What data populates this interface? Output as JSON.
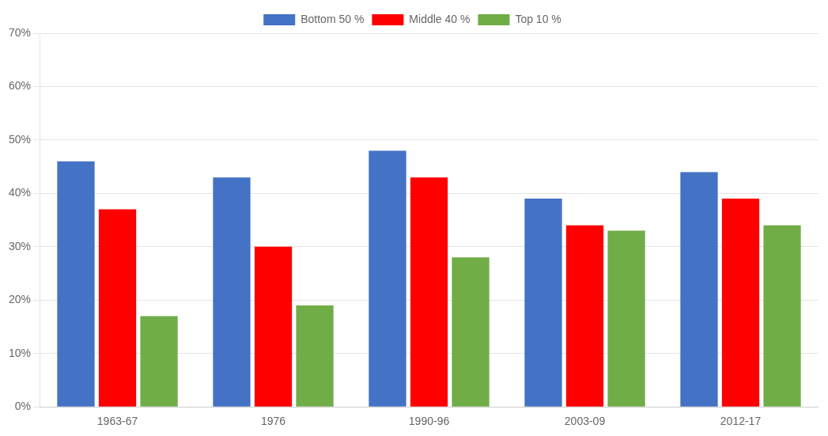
{
  "chart_data": {
    "type": "bar",
    "categories": [
      "1963-67",
      "1976",
      "1990-96",
      "2003-09",
      "2012-17"
    ],
    "series": [
      {
        "name": "Bottom 50 %",
        "color": "#4472C4",
        "values": [
          46,
          43,
          48,
          39,
          44
        ]
      },
      {
        "name": "Middle 40 %",
        "color": "#FF0000",
        "values": [
          37,
          30,
          43,
          34,
          39
        ]
      },
      {
        "name": "Top 10 %",
        "color": "#70AD47",
        "values": [
          17,
          19,
          28,
          33,
          34
        ]
      }
    ],
    "ylim": [
      0,
      70
    ],
    "yticks": [
      {
        "value": 0,
        "label": "0%"
      },
      {
        "value": 10,
        "label": "10%"
      },
      {
        "value": 20,
        "label": "20%"
      },
      {
        "value": 30,
        "label": "30%"
      },
      {
        "value": 40,
        "label": "40%"
      },
      {
        "value": 50,
        "label": "50%"
      },
      {
        "value": 60,
        "label": "60%"
      },
      {
        "value": 70,
        "label": "70%"
      }
    ],
    "grid": true,
    "legend": "top"
  }
}
